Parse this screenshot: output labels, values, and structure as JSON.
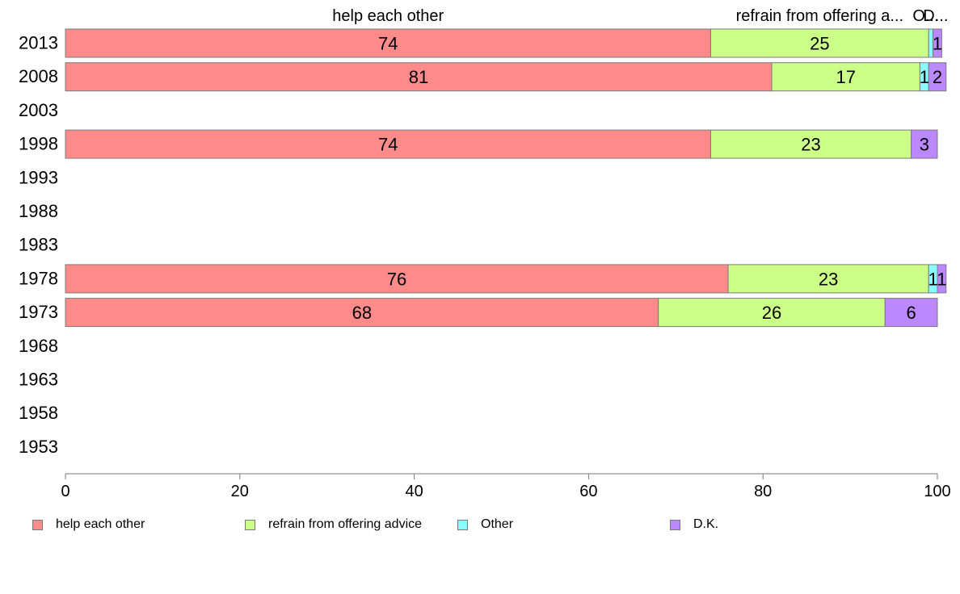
{
  "chart_data": {
    "type": "bar",
    "orientation": "horizontal",
    "stacked": true,
    "categories": [
      "2013",
      "2008",
      "2003",
      "1998",
      "1993",
      "1988",
      "1983",
      "1978",
      "1973",
      "1968",
      "1963",
      "1958",
      "1953"
    ],
    "series": [
      {
        "name": "help each other",
        "color": "#ff8a8a",
        "values": [
          74,
          81,
          null,
          74,
          null,
          null,
          null,
          76,
          68,
          null,
          null,
          null,
          null
        ]
      },
      {
        "name": "refrain from offering advice",
        "color": "#ccff88",
        "values": [
          25,
          17,
          null,
          23,
          null,
          null,
          null,
          23,
          26,
          null,
          null,
          null,
          null
        ]
      },
      {
        "name": "Other",
        "color": "#88ffff",
        "values": [
          0.5,
          1,
          null,
          0,
          null,
          null,
          null,
          1,
          0,
          null,
          null,
          null,
          null
        ]
      },
      {
        "name": "D.K.",
        "color": "#bb88ff",
        "values": [
          1,
          2,
          null,
          3,
          null,
          null,
          null,
          1,
          6,
          null,
          null,
          null,
          null
        ]
      }
    ],
    "data_labels": [
      [
        "74",
        "25",
        "",
        "1"
      ],
      [
        "81",
        "17",
        "1",
        "2"
      ],
      [
        "",
        "",
        "",
        ""
      ],
      [
        "74",
        "23",
        "",
        "3"
      ],
      [
        "",
        "",
        "",
        ""
      ],
      [
        "",
        "",
        "",
        ""
      ],
      [
        "",
        "",
        "",
        ""
      ],
      [
        "76",
        "23",
        "1",
        "1"
      ],
      [
        "68",
        "26",
        "",
        "6"
      ],
      [
        "",
        "",
        "",
        ""
      ],
      [
        "",
        "",
        "",
        ""
      ],
      [
        "",
        "",
        "",
        ""
      ],
      [
        "",
        "",
        "",
        ""
      ]
    ],
    "top_labels": [
      "help each other",
      "refrain from offering a...",
      "O...",
      "D..."
    ],
    "xlim": [
      0,
      100
    ],
    "xticks": [
      0,
      20,
      40,
      60,
      80,
      100
    ],
    "title": "",
    "xlabel": "",
    "ylabel": "",
    "grid": false,
    "legend_position": "bottom"
  }
}
